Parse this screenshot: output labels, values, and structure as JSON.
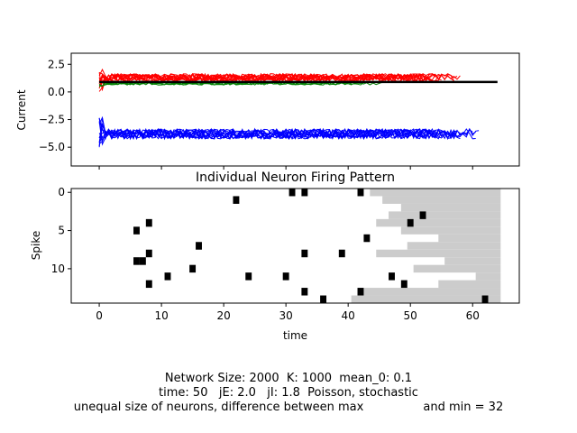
{
  "chart_data": [
    {
      "type": "line",
      "ylabel": "Current",
      "xlim": [
        -4.5,
        67.5
      ],
      "ylim": [
        -6.7,
        3.5
      ],
      "yticks": [
        2.5,
        0.0,
        -2.5,
        -5.0
      ],
      "ytick_labels": [
        "2.5",
        "0.0",
        "−2.5",
        "−5.0"
      ],
      "show_xtick_labels": false,
      "series": [
        {
          "color": "#ff0000",
          "count": 12,
          "mean": 1.3,
          "noise": 0.35,
          "x_end": 60
        },
        {
          "color": "#008000",
          "count": 4,
          "mean": 0.75,
          "noise": 0.12,
          "x_end": 50
        },
        {
          "color": "#0000ff",
          "count": 12,
          "mean": -3.8,
          "noise": 0.45,
          "x_end": 62
        },
        {
          "color": "#000000",
          "count": 1,
          "mean": 0.9,
          "noise": 0.0,
          "x_end": 64,
          "width": 2.5
        }
      ]
    },
    {
      "type": "raster",
      "title": "Individual Neuron Firing Pattern",
      "xlabel": "time",
      "ylabel": "Spike",
      "xlim": [
        -4.5,
        67.5
      ],
      "ylim": [
        14.5,
        -0.5
      ],
      "xticks": [
        0,
        10,
        20,
        30,
        40,
        50,
        60
      ],
      "yticks": [
        0,
        5,
        10
      ],
      "spikes": [
        {
          "t": 31,
          "n": 0
        },
        {
          "t": 33,
          "n": 0
        },
        {
          "t": 42,
          "n": 0
        },
        {
          "t": 22,
          "n": 1
        },
        {
          "t": 52,
          "n": 3
        },
        {
          "t": 8,
          "n": 4
        },
        {
          "t": 50,
          "n": 4
        },
        {
          "t": 6,
          "n": 5
        },
        {
          "t": 43,
          "n": 6
        },
        {
          "t": 16,
          "n": 7
        },
        {
          "t": 8,
          "n": 8
        },
        {
          "t": 33,
          "n": 8
        },
        {
          "t": 39,
          "n": 8
        },
        {
          "t": 6,
          "n": 9
        },
        {
          "t": 7,
          "n": 9
        },
        {
          "t": 15,
          "n": 10
        },
        {
          "t": 11,
          "n": 11
        },
        {
          "t": 24,
          "n": 11
        },
        {
          "t": 30,
          "n": 11
        },
        {
          "t": 47,
          "n": 11
        },
        {
          "t": 8,
          "n": 12
        },
        {
          "t": 49,
          "n": 12
        },
        {
          "t": 33,
          "n": 13
        },
        {
          "t": 42,
          "n": 13
        },
        {
          "t": 36,
          "n": 14
        },
        {
          "t": 62,
          "n": 14
        }
      ],
      "inactive_from": [
        43.5,
        45.5,
        48.5,
        46.5,
        44.5,
        48.5,
        54.5,
        49.5,
        44.5,
        55.5,
        50.5,
        60.5,
        54.5,
        42.5,
        40.5
      ],
      "inactive_until": 64.5,
      "inactive_color": "#cccccc"
    }
  ],
  "caption": {
    "line1": "Network Size: 2000  K: 1000  mean_0: 0.1",
    "line2": "time: 50   jE: 2.0   jI: 1.8  Poisson, stochastic",
    "line3": "unequal size of neurons, difference between max                and min = 32"
  }
}
